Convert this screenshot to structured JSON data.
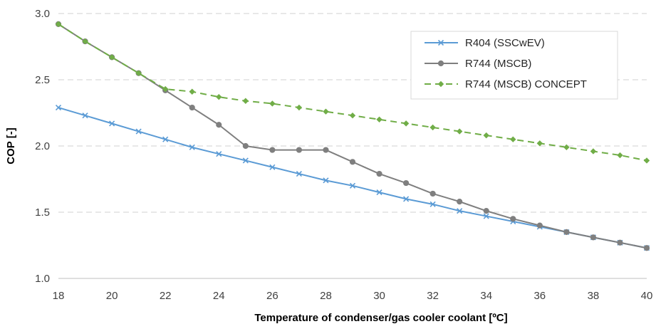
{
  "chart_data": {
    "type": "line",
    "title": "",
    "xlabel": "Temperature of condenser/gas cooler coolant [ºC]",
    "ylabel": "COP [-]",
    "xlim": [
      18,
      40
    ],
    "ylim": [
      1.0,
      3.0
    ],
    "x_ticks": [
      "18",
      "20",
      "22",
      "24",
      "26",
      "28",
      "30",
      "32",
      "34",
      "36",
      "38",
      "40"
    ],
    "y_ticks": [
      "1.0",
      "1.5",
      "2.0",
      "2.5",
      "3.0"
    ],
    "grid": "horizontal dashed",
    "legend_position": "top-right",
    "x": [
      18,
      19,
      20,
      21,
      22,
      23,
      24,
      25,
      26,
      27,
      28,
      29,
      30,
      31,
      32,
      33,
      34,
      35,
      36,
      37,
      38,
      39,
      40
    ],
    "series": [
      {
        "name": "R404 (SSCwEV)",
        "color": "#5B9BD5",
        "marker": "x",
        "dash": "solid",
        "values": [
          2.29,
          2.23,
          2.17,
          2.11,
          2.05,
          1.99,
          1.94,
          1.89,
          1.84,
          1.79,
          1.74,
          1.7,
          1.65,
          1.6,
          1.56,
          1.51,
          1.47,
          1.43,
          1.39,
          1.35,
          1.31,
          1.27,
          1.23
        ]
      },
      {
        "name": "R744 (MSCB)",
        "color": "#7F7F7F",
        "marker": "circle",
        "dash": "solid",
        "values": [
          2.92,
          2.79,
          2.67,
          2.55,
          2.42,
          2.29,
          2.16,
          2.0,
          1.97,
          1.97,
          1.97,
          1.88,
          1.79,
          1.72,
          1.64,
          1.58,
          1.51,
          1.45,
          1.4,
          1.35,
          1.31,
          1.27,
          1.23
        ]
      },
      {
        "name": "R744 (MSCB) CONCEPT",
        "color": "#70AD47",
        "marker": "diamond",
        "dash": "dashed",
        "values": [
          2.92,
          2.79,
          2.67,
          2.55,
          2.43,
          2.41,
          2.37,
          2.34,
          2.32,
          2.29,
          2.26,
          2.23,
          2.2,
          2.17,
          2.14,
          2.11,
          2.08,
          2.05,
          2.02,
          1.99,
          1.96,
          1.93,
          1.89
        ]
      }
    ]
  }
}
